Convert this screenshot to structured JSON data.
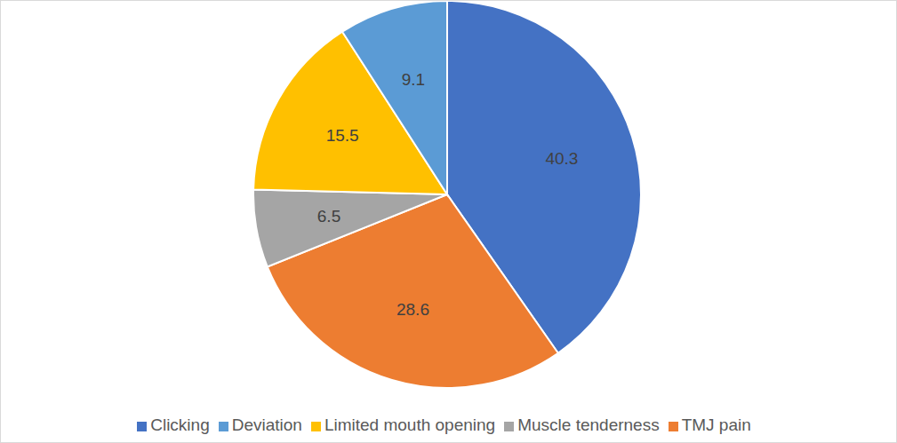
{
  "chart_data": {
    "type": "pie",
    "categories": [
      "Clicking",
      "TMJ pain",
      "Muscle tenderness",
      "Limited mouth opening",
      "Deviation"
    ],
    "values": [
      40.3,
      28.6,
      6.5,
      15.5,
      9.1
    ],
    "colors": [
      "#4472c4",
      "#ed7d31",
      "#a5a5a5",
      "#ffc000",
      "#5b9bd5"
    ],
    "data_labels": true,
    "legend": "bottom"
  }
}
